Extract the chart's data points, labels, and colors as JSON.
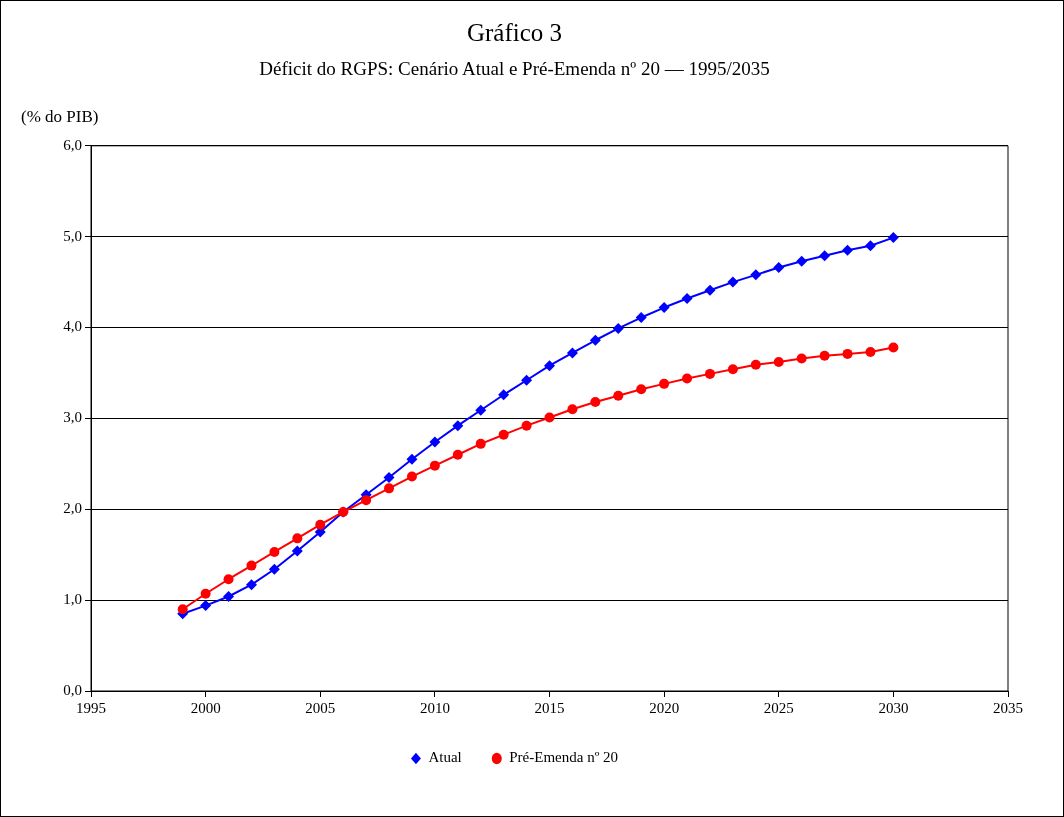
{
  "chart_data": {
    "type": "line",
    "title": "Gráfico 3",
    "subtitle": "Déficit do RGPS: Cenário Atual e Pré-Emenda nº 20 — 1995/2035",
    "ylabel": "(% do PIB)",
    "x": [
      1999,
      2000,
      2001,
      2002,
      2003,
      2004,
      2005,
      2006,
      2007,
      2008,
      2009,
      2010,
      2011,
      2012,
      2013,
      2014,
      2015,
      2016,
      2017,
      2018,
      2019,
      2020,
      2021,
      2022,
      2023,
      2024,
      2025,
      2026,
      2027,
      2028,
      2029,
      2030
    ],
    "series": [
      {
        "name": "Atual",
        "color": "#0000ff",
        "marker": "diamond",
        "values": [
          0.85,
          0.94,
          1.04,
          1.17,
          1.34,
          1.54,
          1.75,
          1.97,
          2.16,
          2.35,
          2.55,
          2.74,
          2.92,
          3.09,
          3.26,
          3.42,
          3.58,
          3.72,
          3.86,
          3.99,
          4.11,
          4.22,
          4.32,
          4.41,
          4.5,
          4.58,
          4.66,
          4.73,
          4.79,
          4.85,
          4.9,
          4.99
        ]
      },
      {
        "name": "Pré-Emenda nº 20",
        "color": "#ff0000",
        "marker": "circle",
        "values": [
          0.9,
          1.07,
          1.23,
          1.38,
          1.53,
          1.68,
          1.83,
          1.97,
          2.1,
          2.23,
          2.36,
          2.48,
          2.6,
          2.72,
          2.82,
          2.92,
          3.01,
          3.1,
          3.18,
          3.25,
          3.32,
          3.38,
          3.44,
          3.49,
          3.54,
          3.59,
          3.62,
          3.66,
          3.69,
          3.71,
          3.73,
          3.78
        ]
      }
    ],
    "xlim": [
      1995,
      2035
    ],
    "xticks": [
      1995,
      2000,
      2005,
      2010,
      2015,
      2020,
      2025,
      2030,
      2035
    ],
    "ylim": [
      0,
      6
    ],
    "yticks": [
      {
        "value": 0,
        "label": "0,0"
      },
      {
        "value": 1,
        "label": "1,0"
      },
      {
        "value": 2,
        "label": "2,0"
      },
      {
        "value": 3,
        "label": "3,0"
      },
      {
        "value": 4,
        "label": "4,0"
      },
      {
        "value": 5,
        "label": "5,0"
      },
      {
        "value": 6,
        "label": "6,0"
      }
    ],
    "grid": "y",
    "legend": "bottom",
    "line_style": "solid"
  }
}
